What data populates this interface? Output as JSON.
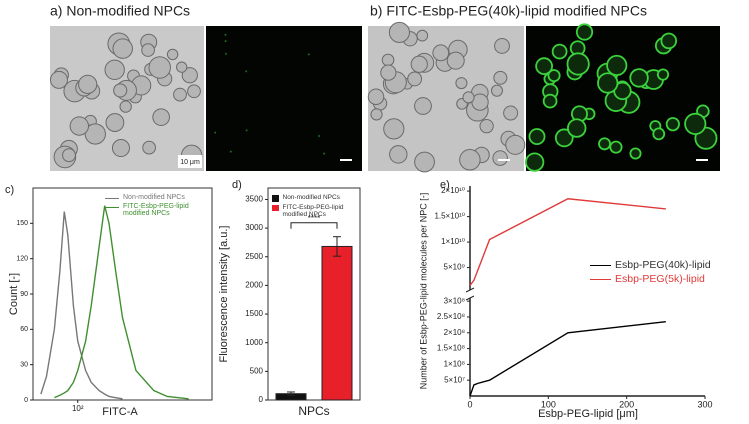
{
  "panels": [
    {
      "title": "a) Non-modified NPCs"
    },
    {
      "title": "b) FITC-Esbp-PEG(40k)-lipid modified NPCs"
    }
  ],
  "scale_label": "10 μm",
  "chart_data": [
    {
      "type": "line",
      "label": "c)",
      "xlabel": "FITC-A",
      "ylabel": "Count [-]",
      "xscale": "log",
      "x": [
        15,
        20,
        30,
        40,
        50,
        60,
        80,
        100,
        150,
        200,
        300,
        400,
        500,
        700,
        1000,
        2000,
        5000,
        10000,
        30000
      ],
      "series": [
        {
          "name": "Non-modified NPCs",
          "color": "#777777",
          "values": [
            5,
            20,
            60,
            110,
            160,
            140,
            80,
            50,
            25,
            15,
            8,
            5,
            3,
            2,
            1,
            null,
            null,
            null,
            null
          ]
        },
        {
          "name": "FITC-Esbp-PEG-lipid modified NPCs",
          "color": "#3f8f2f",
          "values": [
            null,
            null,
            2,
            4,
            6,
            8,
            15,
            25,
            50,
            80,
            130,
            165,
            150,
            110,
            70,
            25,
            8,
            3,
            1
          ]
        }
      ],
      "xlim": [
        10,
        100000
      ],
      "xticks": [
        {
          "value": 100,
          "label": "10²"
        }
      ],
      "ylim": [
        0,
        180
      ],
      "yticks": [
        0,
        30,
        60,
        90,
        120,
        150
      ],
      "legend": "upper right"
    },
    {
      "type": "bar",
      "label": "d)",
      "ylabel": "Fluorescence intensity [a.u.]",
      "categories": [
        "NPCs"
      ],
      "series": [
        {
          "name": "Non-modified NPCs",
          "color": "#111111",
          "values": [
            110
          ],
          "errors": [
            30
          ]
        },
        {
          "name": "FITC-Esbp-PEG-lipid modified NPCs",
          "color": "#e8202a",
          "values": [
            2680
          ],
          "errors": [
            170
          ]
        }
      ],
      "annotation": "****",
      "ylim": [
        0,
        3700
      ],
      "yticks": [
        0,
        500,
        1000,
        1500,
        2000,
        2500,
        3000,
        3500
      ],
      "legend": "upper left"
    },
    {
      "type": "line",
      "label": "e)",
      "xlabel": "Esbp-PEG-lipid [μm]",
      "ylabel": "Number of Esbp-PEG-lipid molecules per NPC [-]",
      "x": [
        0,
        5,
        10,
        25,
        125,
        250
      ],
      "series": [
        {
          "name": "Esbp-PEG(40k)-lipid",
          "color": "#000000",
          "values": [
            0,
            35000000,
            40000000,
            50000000,
            200000000,
            235000000
          ]
        },
        {
          "name": "Esbp-PEG(5k)-lipid",
          "color": "#e03a3a",
          "axis": "y2",
          "values": [
            1500000000,
            2500000000,
            4500000000,
            10500000000,
            18500000000,
            16500000000
          ]
        }
      ],
      "xlim": [
        0,
        300
      ],
      "xticks": [
        0,
        100,
        200,
        300
      ],
      "ylim": [
        0,
        310000000
      ],
      "yticks": [
        {
          "value": 50000000,
          "label": "5×10⁷"
        },
        {
          "value": 100000000,
          "label": "1×10⁸"
        },
        {
          "value": 150000000,
          "label": "1.5×10⁸"
        },
        {
          "value": 200000000,
          "label": "2×10⁸"
        },
        {
          "value": 250000000,
          "label": "2.5×10⁸"
        },
        {
          "value": 300000000,
          "label": "3×10⁸"
        }
      ],
      "y2lim": [
        600000000,
        21000000000
      ],
      "y2ticks": [
        {
          "value": 5000000000,
          "label": "5×10⁹"
        },
        {
          "value": 10000000000,
          "label": "1×10¹⁰"
        },
        {
          "value": 15000000000,
          "label": "1.5×10¹⁰"
        },
        {
          "value": 20000000000,
          "label": "2×10¹⁰"
        }
      ],
      "legend": "center right"
    }
  ]
}
